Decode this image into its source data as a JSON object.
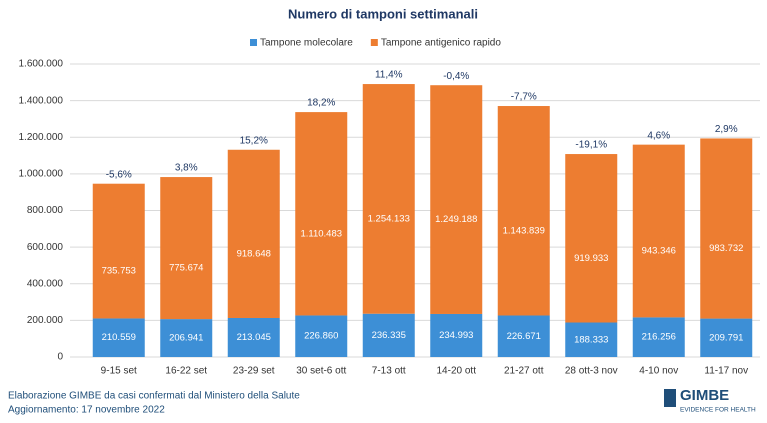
{
  "chart_data": {
    "type": "stacked_bar",
    "title": "Numero di tamponi settimanali",
    "categories": [
      "9-15 set",
      "16-22 set",
      "23-29 set",
      "30 set-6 ott",
      "7-13 ott",
      "14-20 ott",
      "21-27 ott",
      "28 ott-3 nov",
      "4-10 nov",
      "11-17 nov"
    ],
    "series": [
      {
        "name": "Tampone molecolare",
        "color": "#3d8fd6",
        "values": [
          210559,
          206941,
          213045,
          226860,
          236335,
          234993,
          226671,
          188333,
          216256,
          209791
        ],
        "value_labels": [
          "210.559",
          "206.941",
          "213.045",
          "226.860",
          "236.335",
          "234.993",
          "226.671",
          "188.333",
          "216.256",
          "209.791"
        ]
      },
      {
        "name": "Tampone antigenico rapido",
        "color": "#ed7d31",
        "values": [
          735753,
          775674,
          918648,
          1110483,
          1254133,
          1249188,
          1143839,
          919933,
          943346,
          983732
        ],
        "value_labels": [
          "735.753",
          "775.674",
          "918.648",
          "1.110.483",
          "1.254.133",
          "1.249.188",
          "1.143.839",
          "919.933",
          "943.346",
          "983.732"
        ]
      }
    ],
    "top_labels": [
      "-5,6%",
      "3,8%",
      "15,2%",
      "18,2%",
      "11,4%",
      "-0,4%",
      "-7,7%",
      "-19,1%",
      "4,6%",
      "2,9%"
    ],
    "ylim": [
      0,
      1600000
    ],
    "yticks": [
      0,
      {
        "value": 200000,
        "label": "200.000"
      },
      {
        "value": 400000,
        "label": "400.000"
      },
      {
        "value": 600000,
        "label": "600.000"
      },
      {
        "value": 800000,
        "label": "800.000"
      },
      {
        "value": 1000000,
        "label": "1.000.000"
      },
      {
        "value": 1200000,
        "label": "1.200.000"
      },
      {
        "value": 1400000,
        "label": "1.400.000"
      },
      {
        "value": 1600000,
        "label": "1.600.000"
      }
    ],
    "grid": true,
    "legend": "top",
    "source": [
      "Elaborazione GIMBE da casi confermati dal Ministero della Salute",
      "Aggiornamento: 17 novembre 2022"
    ],
    "logo": "GIMBE",
    "logo_tagline": "EVIDENCE FOR HEALTH"
  }
}
